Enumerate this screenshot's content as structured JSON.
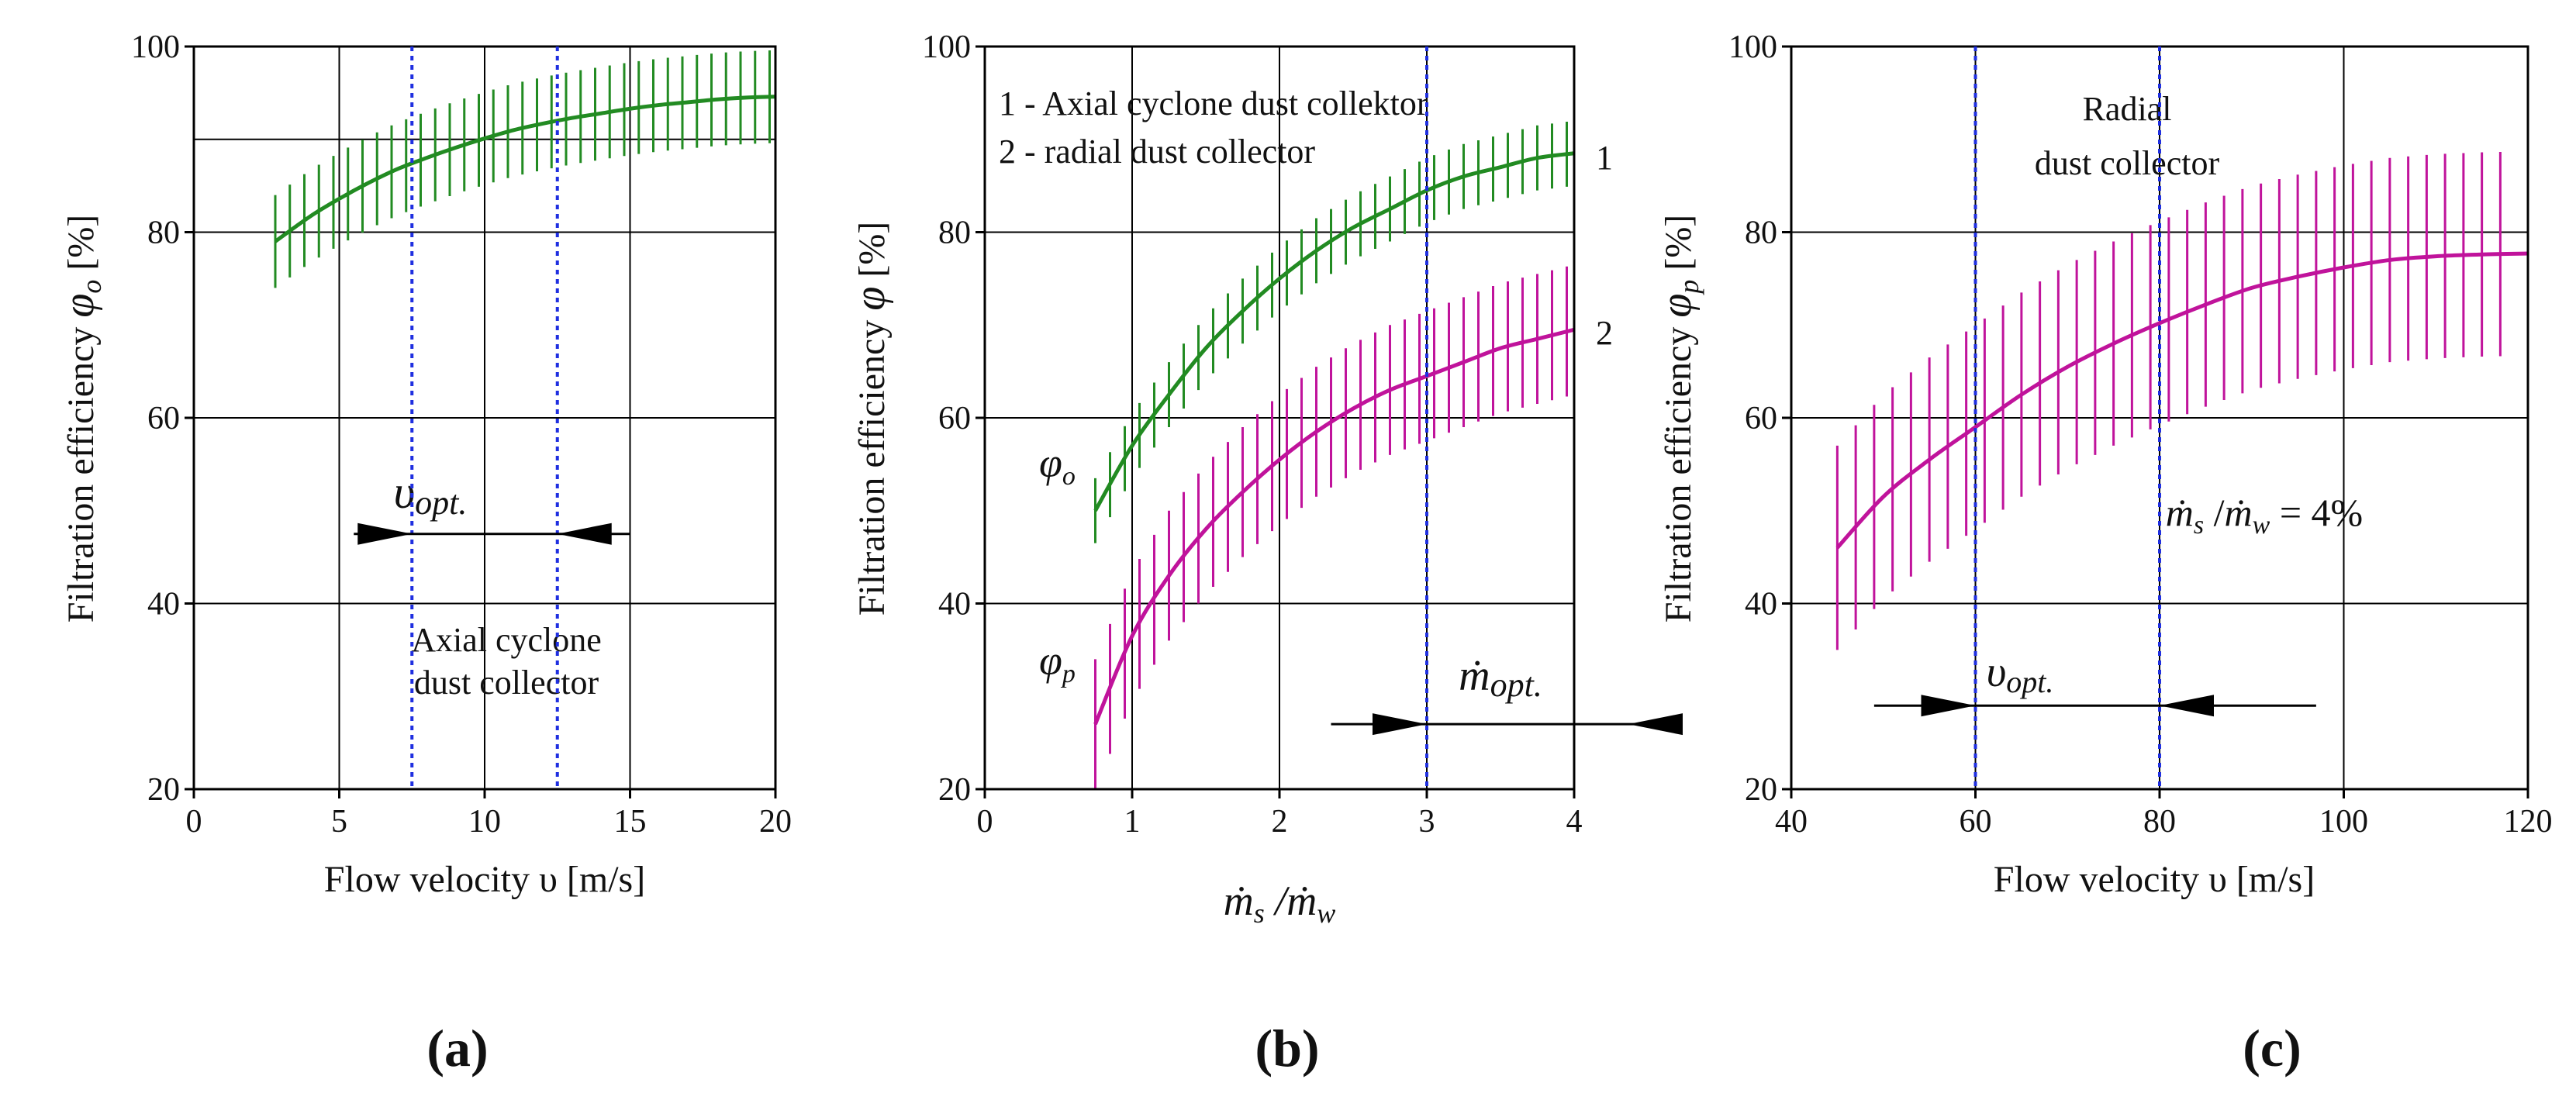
{
  "figure": {
    "colors": {
      "green": "#228B22",
      "magenta": "#C0139B",
      "blue": "#1F2FE0"
    }
  },
  "chart_data": [
    {
      "id": "a",
      "type": "line",
      "panel_label": "(a)",
      "xlabel": "Flow velocity υ [m/s]",
      "ylabel_main": "Filtration efficiency ",
      "ylabel_symbol": "φ",
      "ylabel_sub": "o",
      "ylabel_unit": " [%]",
      "xlim": [
        0,
        20
      ],
      "ylim": [
        20,
        100
      ],
      "xticks": [
        0,
        5,
        10,
        15,
        20
      ],
      "yticks": [
        20,
        40,
        60,
        80,
        100
      ],
      "grid": true,
      "series": [
        {
          "name": "Axial cyclone dust collector",
          "color": "#228B22",
          "x": [
            2.8,
            4,
            5,
            6,
            7,
            8,
            9,
            10,
            11,
            12,
            13,
            14,
            15,
            16,
            17,
            18,
            19,
            20
          ],
          "y": [
            79,
            81.7,
            83.6,
            85.3,
            86.8,
            88,
            89.1,
            90.1,
            91,
            91.7,
            92.3,
            92.8,
            93.3,
            93.7,
            94,
            94.3,
            94.5,
            94.6
          ],
          "error": 5,
          "error_step": 0.5,
          "error_x_start": 2.8
        }
      ],
      "opt_lines": {
        "x": [
          7.5,
          12.5
        ],
        "color": "#1F2FE0"
      },
      "opt_arrow": {
        "y": 47.5,
        "x_from": 5.5,
        "x_to": 15
      },
      "opt_label": {
        "symbol": "υ",
        "sub": "opt."
      },
      "annotations": [
        "Axial cyclone",
        "dust collector"
      ],
      "h_extra_line": 90
    },
    {
      "id": "b",
      "type": "line",
      "panel_label": "(b)",
      "xlabel_parts": {
        "m1": "ṁ",
        "s1": "s",
        "slash": " /",
        "m2": "ṁ",
        "s2": "w"
      },
      "ylabel_main": "Filtration efficiency ",
      "ylabel_symbol": "φ",
      "ylabel_sub": "",
      "ylabel_unit": " [%]",
      "xlim": [
        0,
        4
      ],
      "ylim": [
        20,
        100
      ],
      "xticks": [
        0,
        1,
        2,
        3,
        4
      ],
      "yticks": [
        20,
        40,
        60,
        80,
        100
      ],
      "grid": true,
      "series": [
        {
          "name": "1 - Axial cyclone dust collektor",
          "curve_label": "1",
          "symbol": "φ",
          "sub": "o",
          "color": "#228B22",
          "x": [
            0.75,
            1,
            1.25,
            1.5,
            1.75,
            2,
            2.25,
            2.5,
            2.75,
            3,
            3.25,
            3.5,
            3.75,
            4
          ],
          "y": [
            50,
            57,
            62.5,
            67.5,
            71.5,
            75,
            78,
            80.5,
            82.5,
            84.5,
            86,
            87,
            88,
            88.5
          ],
          "error": 3.5,
          "error_step": 0.1,
          "error_x_start": 0.75
        },
        {
          "name": "2 - radial dust collector",
          "curve_label": "2",
          "symbol": "φ",
          "sub": "p",
          "color": "#C0139B",
          "x": [
            0.75,
            1,
            1.25,
            1.5,
            1.75,
            2,
            2.25,
            2.5,
            2.75,
            3,
            3.25,
            3.5,
            3.75,
            4
          ],
          "y": [
            27,
            36.5,
            43,
            48,
            52,
            55.5,
            58.5,
            61,
            63,
            64.5,
            66,
            67.5,
            68.5,
            69.5
          ],
          "error": 7,
          "error_step": 0.1,
          "error_x_start": 0.75
        }
      ],
      "opt_lines": {
        "x": [
          3
        ],
        "color": "#1F2FE0"
      },
      "opt_arrow": {
        "y": 27,
        "x_from": 2.35,
        "x_to": 4.6
      },
      "opt_label": {
        "symbol": "ṁ",
        "sub": "opt."
      },
      "legend_lines": [
        "1 - Axial cyclone dust collektor",
        "2 - radial dust collector"
      ]
    },
    {
      "id": "c",
      "type": "line",
      "panel_label": "(c)",
      "xlabel": "Flow velocity υ [m/s]",
      "ylabel_main": "Filtration efficiency ",
      "ylabel_symbol": "φ",
      "ylabel_sub": "p",
      "ylabel_unit": " [%]",
      "xlim": [
        40,
        120
      ],
      "ylim": [
        20,
        100
      ],
      "xticks": [
        40,
        60,
        80,
        100,
        120
      ],
      "yticks": [
        20,
        40,
        60,
        80,
        100
      ],
      "grid": true,
      "series": [
        {
          "name": "Radial dust collector",
          "color": "#C0139B",
          "x": [
            45,
            50,
            55,
            60,
            65,
            70,
            75,
            80,
            85,
            90,
            95,
            100,
            105,
            110,
            115,
            120
          ],
          "y": [
            46,
            51.5,
            55.5,
            59,
            62.5,
            65.5,
            68,
            70.2,
            72.2,
            74,
            75.2,
            76.2,
            77,
            77.4,
            77.6,
            77.7
          ],
          "error": 11,
          "error_step": 2,
          "error_x_start": 45,
          "error_x_end": 118
        }
      ],
      "opt_lines": {
        "x": [
          60,
          80
        ],
        "color": "#1F2FE0"
      },
      "opt_arrow": {
        "y": 29,
        "x_from": 49,
        "x_to": 97
      },
      "opt_label": {
        "symbol": "υ",
        "sub": "opt."
      },
      "annotations": [
        "Radial",
        "dust collector"
      ],
      "ratio_label": {
        "m1": "ṁ",
        "s1": "s",
        "slash": " /",
        "m2": "ṁ",
        "s2": "w",
        "rest": " = 4%"
      }
    }
  ]
}
